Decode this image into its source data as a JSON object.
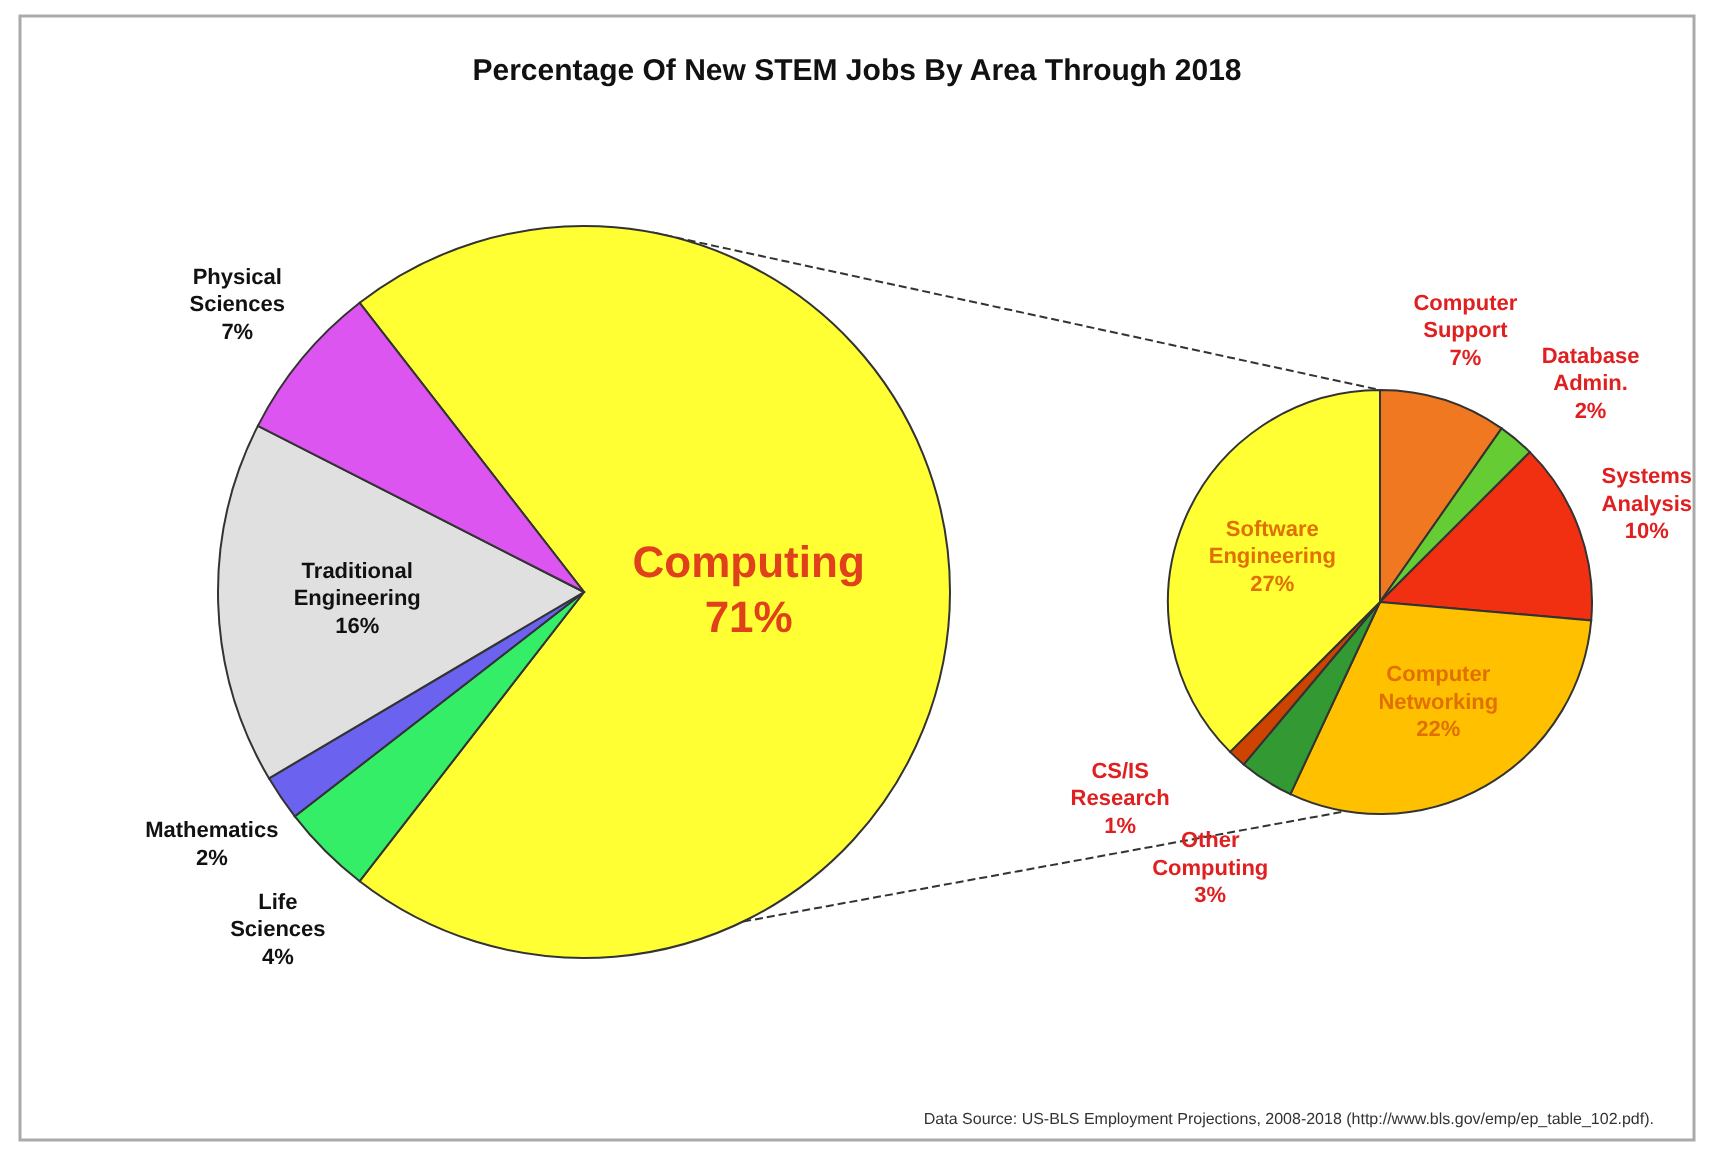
{
  "chart_data": [
    {
      "type": "pie",
      "title": "Percentage Of New STEM Jobs By Area Through 2018",
      "categories": [
        "Computing",
        "Life Sciences",
        "Mathematics",
        "Traditional Engineering",
        "Physical Sciences"
      ],
      "values": [
        71,
        4,
        2,
        16,
        7
      ],
      "value_labels": [
        "71%",
        "4%",
        "2%",
        "16%",
        "7%"
      ],
      "colors": [
        "#ffff33",
        "#33ee66",
        "#6b63f0",
        "#e0e0e0",
        "#dd55f0"
      ],
      "annotations": [
        "Data Source: US-BLS Employment Projections, 2008-2018 (http://www.bls.gov/emp/ep_table_102.pdf)."
      ]
    },
    {
      "type": "pie",
      "categories": [
        "Computer Support",
        "Database Admin.",
        "Systems Analysis",
        "Computer Networking",
        "Other Computing",
        "CS/IS Research",
        "Software Engineering"
      ],
      "values": [
        7,
        2,
        10,
        22,
        3,
        1,
        27
      ],
      "value_labels": [
        "7%",
        "2%",
        "10%",
        "22%",
        "3%",
        "1%",
        "27%"
      ],
      "colors": [
        "#f07820",
        "#66cc33",
        "#f03010",
        "#ffc000",
        "#339933",
        "#cc4400",
        "#ffff33"
      ]
    }
  ]
}
